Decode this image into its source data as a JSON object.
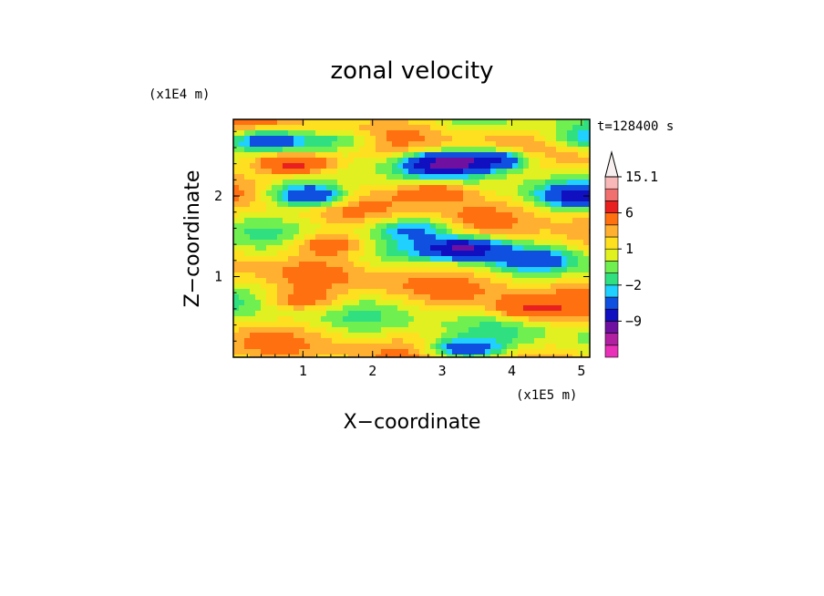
{
  "chart_data": {
    "type": "heatmap",
    "title": "zonal velocity",
    "xlabel": "X−coordinate",
    "ylabel": "Z−coordinate",
    "x_units": "(x1E5 m)",
    "y_units": "(x1E4 m)",
    "time_label": "t=128400 s",
    "xlim": [
      0,
      5.12
    ],
    "ylim": [
      0,
      2.95
    ],
    "x_ticks": [
      1,
      2,
      3,
      4,
      5
    ],
    "y_ticks": [
      1,
      2
    ],
    "colorbar": {
      "levels": [
        -15,
        -12,
        -9,
        -6,
        -3,
        -2,
        -1,
        0,
        1,
        2,
        3,
        6,
        9,
        12,
        15.1
      ],
      "colors": [
        "#e830b8",
        "#b020a0",
        "#7010a0",
        "#1010c0",
        "#1050e0",
        "#20d0ff",
        "#30e080",
        "#70f050",
        "#e0f020",
        "#ffe020",
        "#ffb030",
        "#ff7010",
        "#e82020",
        "#f07070",
        "#f8b8b8"
      ],
      "tick_labels": [
        "15.1",
        "6",
        "1",
        "−2",
        "−9"
      ],
      "tick_values": [
        15.1,
        6,
        1,
        -2,
        -9
      ]
    },
    "features": [
      {
        "x": 0.9,
        "z": 2.4,
        "u": 8
      },
      {
        "x": 1.6,
        "z": 2.7,
        "u": -3
      },
      {
        "x": 3.0,
        "z": 2.4,
        "u": -10
      },
      {
        "x": 3.75,
        "z": 2.45,
        "u": -8
      },
      {
        "x": 0.5,
        "z": 2.7,
        "u": -7
      },
      {
        "x": 1.1,
        "z": 2.0,
        "u": -8
      },
      {
        "x": 2.9,
        "z": 2.05,
        "u": 5
      },
      {
        "x": 2.6,
        "z": 1.6,
        "u": -4
      },
      {
        "x": 3.3,
        "z": 1.35,
        "u": -10
      },
      {
        "x": 1.4,
        "z": 1.4,
        "u": 4
      },
      {
        "x": 4.3,
        "z": 1.2,
        "u": -4
      },
      {
        "x": 4.3,
        "z": 0.6,
        "u": 5
      },
      {
        "x": 1.0,
        "z": 0.7,
        "u": 3
      },
      {
        "x": 2.4,
        "z": 0.9,
        "u": 0.5
      },
      {
        "x": 3.3,
        "z": 0.1,
        "u": -6
      },
      {
        "x": 5.0,
        "z": 2.7,
        "u": -3
      },
      {
        "x": 5.05,
        "z": 2.0,
        "u": -8
      }
    ]
  }
}
